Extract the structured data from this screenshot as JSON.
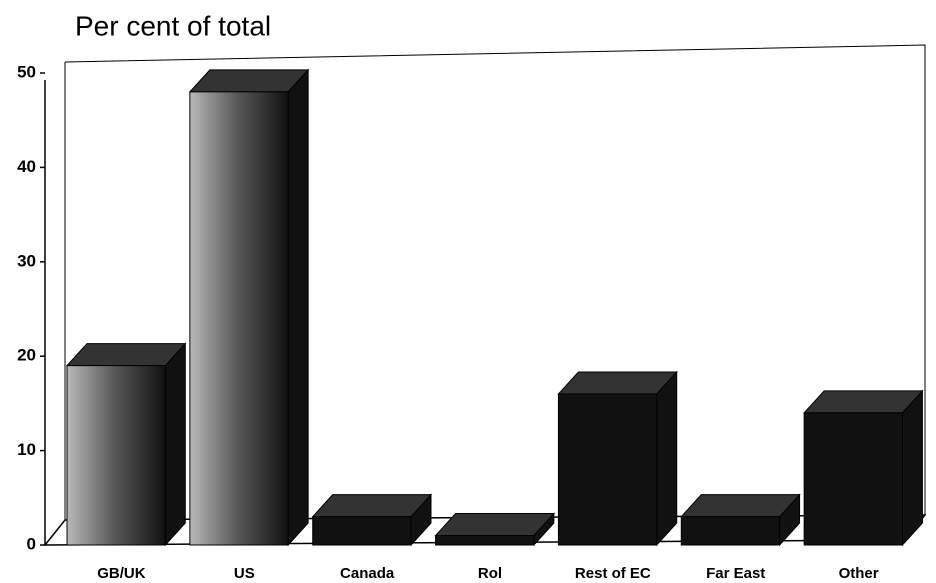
{
  "chart_data": {
    "type": "bar3d",
    "title": "Per cent of total",
    "categories": [
      "GB/UK",
      "US",
      "Canada",
      "Rol",
      "Rest of EC",
      "Far East",
      "Other"
    ],
    "values": [
      19,
      48,
      3,
      1,
      16,
      3,
      14
    ],
    "color": "#111111",
    "ylim": [
      0,
      50
    ],
    "yticks": [
      0,
      10,
      20,
      30,
      40,
      50
    ]
  }
}
